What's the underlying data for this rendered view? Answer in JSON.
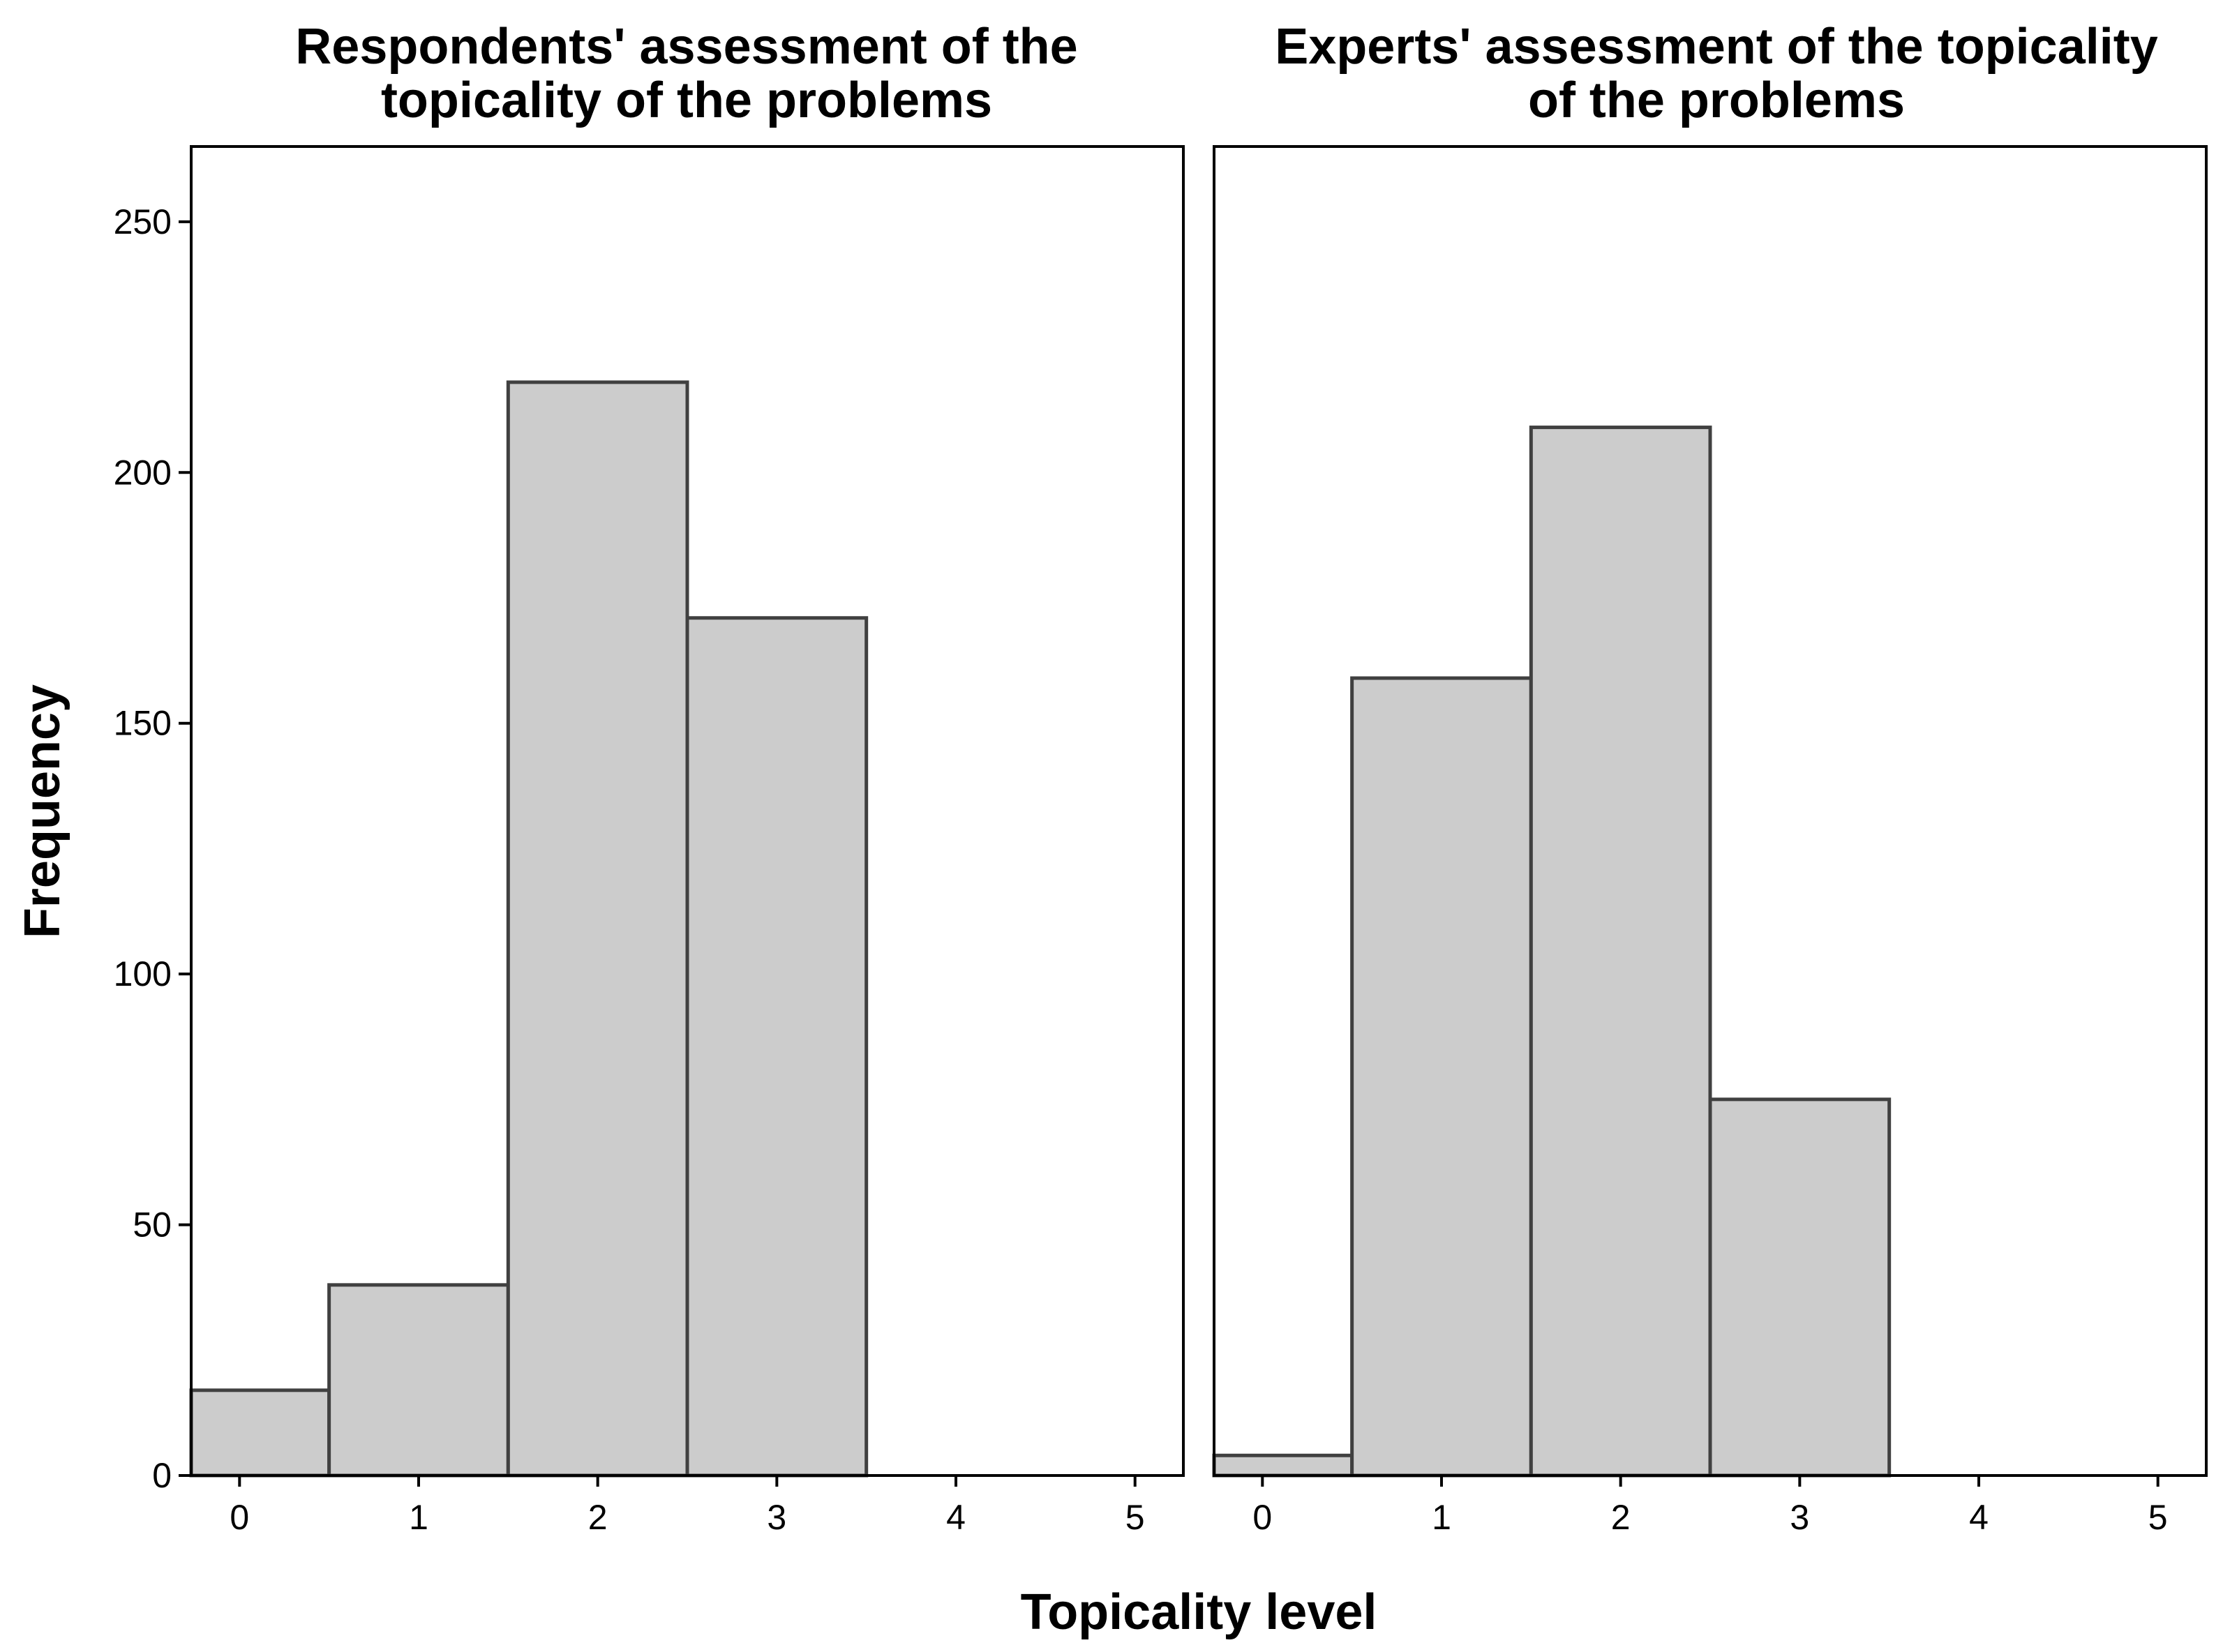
{
  "chart_data": [
    {
      "type": "bar",
      "title_lines": [
        "Respondents' assessment of the",
        "topicality of the problems"
      ],
      "xlabel": "Topicality level",
      "ylabel": "Frequency",
      "x_ticks": [
        "0",
        "1",
        "2",
        "3",
        "4",
        "5"
      ],
      "y_ticks": [
        "0",
        "50",
        "100",
        "150",
        "200",
        "250"
      ],
      "xlim": [
        -0.27,
        5.27
      ],
      "ylim": [
        0,
        265
      ],
      "bins": [
        {
          "from": -0.5,
          "to": 0.5,
          "value": 17
        },
        {
          "from": 0.5,
          "to": 1.5,
          "value": 38
        },
        {
          "from": 1.5,
          "to": 2.5,
          "value": 218
        },
        {
          "from": 2.5,
          "to": 3.5,
          "value": 171
        }
      ],
      "grid": false,
      "bar_fill": "#cccccc",
      "bar_stroke": "#404040"
    },
    {
      "type": "bar",
      "title_lines": [
        "Experts' assessment of the topicality",
        "of the problems"
      ],
      "xlabel": "Topicality level",
      "ylabel": "",
      "x_ticks": [
        "0",
        "1",
        "2",
        "3",
        "4",
        "5"
      ],
      "y_ticks": [],
      "xlim": [
        -0.27,
        5.27
      ],
      "ylim": [
        0,
        265
      ],
      "bins": [
        {
          "from": -0.5,
          "to": 0.5,
          "value": 4
        },
        {
          "from": 0.5,
          "to": 1.5,
          "value": 159
        },
        {
          "from": 1.5,
          "to": 2.5,
          "value": 209
        },
        {
          "from": 2.5,
          "to": 3.5,
          "value": 75
        }
      ],
      "grid": false,
      "bar_fill": "#cccccc",
      "bar_stroke": "#404040"
    }
  ],
  "shared": {
    "xlabel": "Topicality level",
    "ylabel": "Frequency"
  }
}
